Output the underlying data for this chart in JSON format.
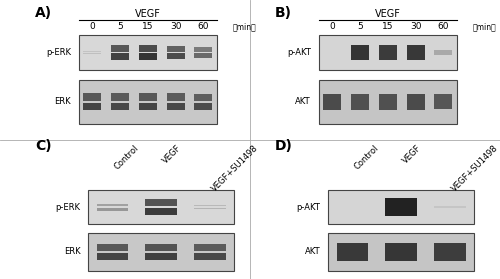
{
  "fig_width": 5.0,
  "fig_height": 2.79,
  "dpi": 100,
  "bg_color": "#ffffff",
  "panel_label_fontsize": 10,
  "vegf_label": "VEGF",
  "min_label": "（min）",
  "time_points": [
    "0",
    "5",
    "15",
    "30",
    "60"
  ],
  "su1498_labels": [
    "Control",
    "VEGF",
    "VEGF+SU1498"
  ],
  "panel_A": {
    "row_labels": [
      "p-ERK",
      "ERK"
    ],
    "lane_intensities_row1": [
      0.12,
      0.75,
      0.82,
      0.7,
      0.55
    ],
    "lane_intensities_row2": [
      0.72,
      0.7,
      0.72,
      0.7,
      0.68
    ],
    "box_bg": "#d8d8d8",
    "box_bg2": "#c8c8c8",
    "band_dark": "#222222",
    "band_mid": "#555555",
    "is_doublet_row1": true,
    "is_doublet_row2": true
  },
  "panel_B": {
    "row_labels": [
      "p-AKT",
      "AKT"
    ],
    "lane_intensities_row1": [
      0.04,
      0.82,
      0.78,
      0.8,
      0.22
    ],
    "lane_intensities_row2": [
      0.68,
      0.65,
      0.65,
      0.68,
      0.62
    ],
    "box_bg": "#d5d5d5",
    "box_bg2": "#c5c5c5",
    "band_dark": "#222222",
    "band_mid": "#555555",
    "is_doublet_row1": false,
    "is_doublet_row2": false
  },
  "panel_C": {
    "row_labels": [
      "p-ERK",
      "ERK"
    ],
    "lane_intensities_row1": [
      0.32,
      0.78,
      0.18
    ],
    "lane_intensities_row2": [
      0.72,
      0.75,
      0.7
    ],
    "box_bg": "#d8d8d8",
    "box_bg2": "#c8c8c8",
    "band_dark": "#222222",
    "band_mid": "#555555",
    "is_doublet_row1": true,
    "is_doublet_row2": true
  },
  "panel_D": {
    "row_labels": [
      "p-AKT",
      "AKT"
    ],
    "lane_intensities_row1": [
      0.04,
      0.92,
      0.08
    ],
    "lane_intensities_row2": [
      0.78,
      0.8,
      0.76
    ],
    "box_bg": "#d5d5d5",
    "box_bg2": "#c5c5c5",
    "band_dark": "#222222",
    "band_mid": "#555555",
    "is_doublet_row1": false,
    "is_doublet_row2": false
  }
}
